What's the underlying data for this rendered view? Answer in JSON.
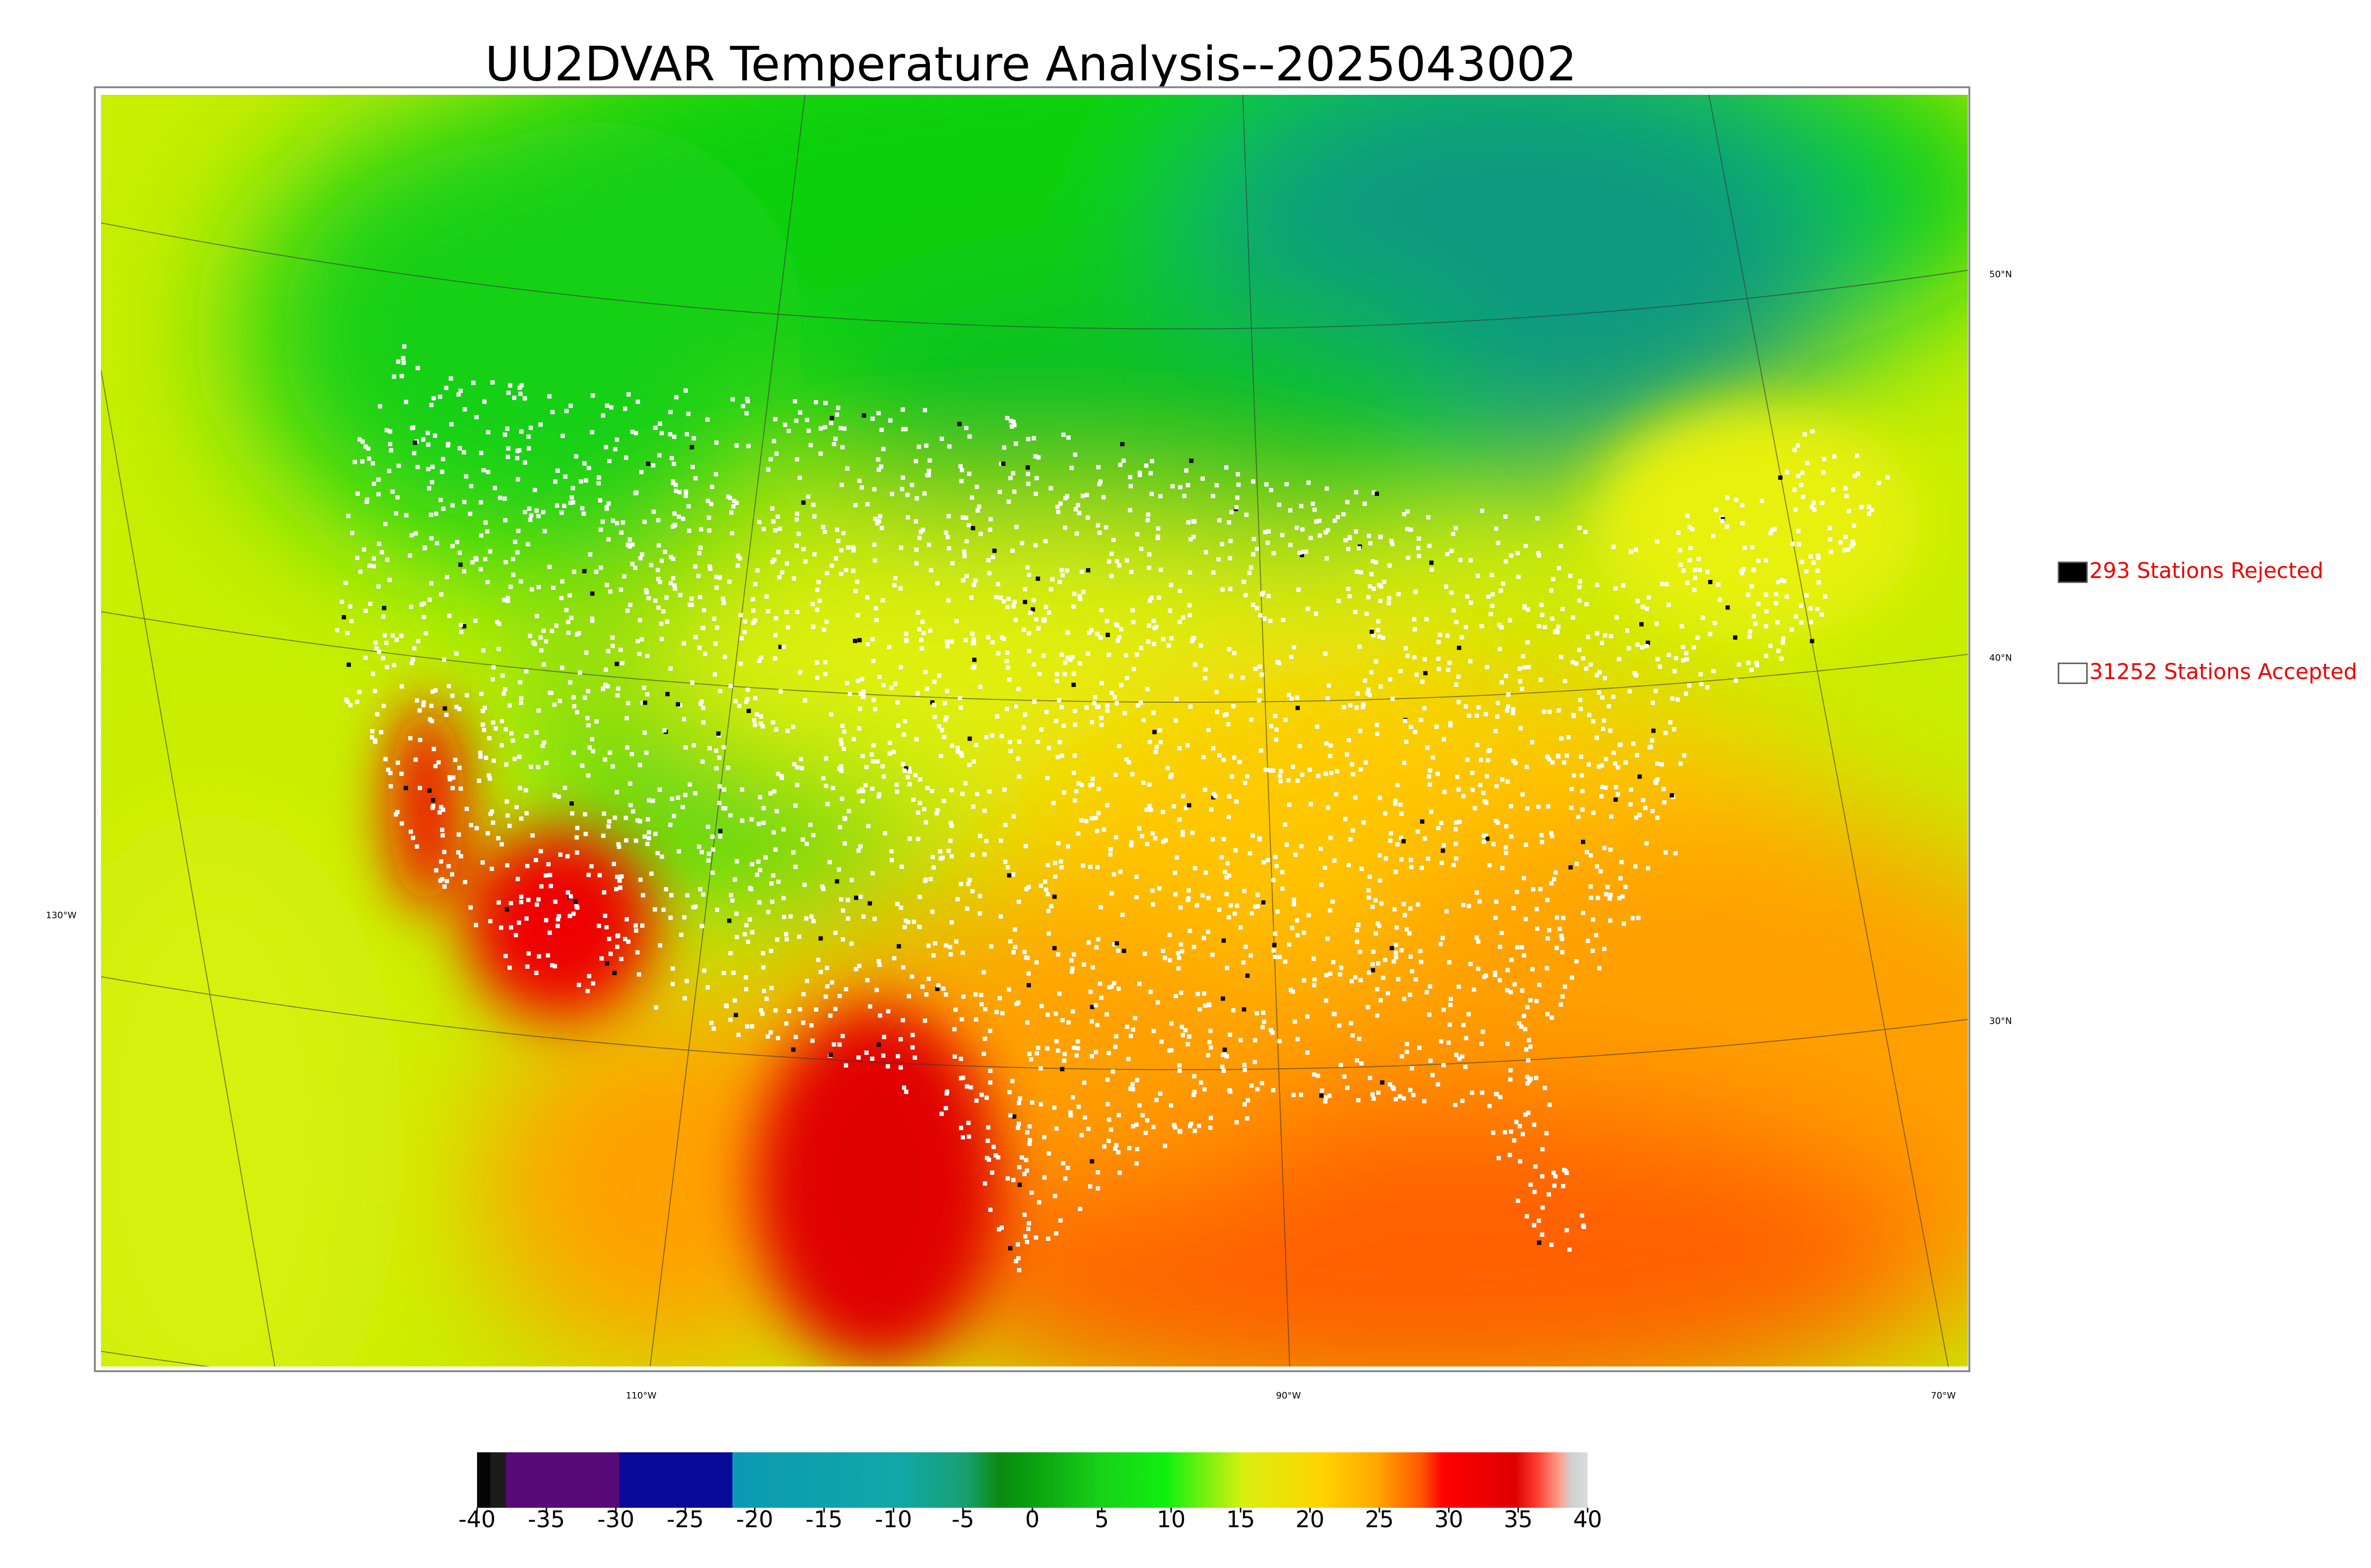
{
  "header": {
    "title": "UU2DVAR Temperature Analysis--2025043002"
  },
  "map": {
    "lat_labels": [
      "50°N",
      "40°N",
      "30°N"
    ],
    "lon_labels": [
      "130°W",
      "110°W",
      "90°W",
      "70°W"
    ]
  },
  "legend": {
    "items": [
      {
        "label": "293 Stations Rejected",
        "color": "#000000"
      },
      {
        "label": "31252 Stations Accepted",
        "color": "#ffffff"
      }
    ]
  },
  "colorbar": {
    "range": [
      -40,
      40
    ],
    "ticks": [
      -40,
      -35,
      -30,
      -25,
      -20,
      -15,
      -10,
      -5,
      0,
      5,
      10,
      15,
      20,
      25,
      30,
      35,
      40
    ]
  }
}
